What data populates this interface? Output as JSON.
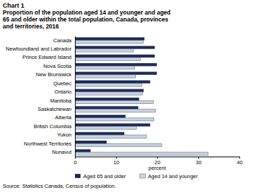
{
  "chart_data": {
    "type": "bar",
    "title": "Chart 1",
    "subtitle": "Proportion of the population aged 14 and younger and aged 65 and older within the total population, Canada, provinces and territories, 2016",
    "orientation": "horizontal",
    "grid": false,
    "legend": "bottom",
    "categories": [
      "Canada",
      "Newfoundland and Labrador",
      "Prince Edward Island",
      "Nova Scotia",
      "New Brunswick",
      "Quebec",
      "Ontario",
      "Manitoba",
      "Saskatchewan",
      "Alberta",
      "British Columbia",
      "Yukon",
      "Northwest Territories",
      "Nunavut"
    ],
    "series": [
      {
        "name": "Aged 65 and older",
        "color": "#1f2d5a",
        "values": [
          16.9,
          19.4,
          19.4,
          19.9,
          19.9,
          18.3,
          16.7,
          15.6,
          15.4,
          12.3,
          18.3,
          12.0,
          7.7,
          3.8
        ]
      },
      {
        "name": "Aged 14 and younger",
        "color": "#c9d4e0",
        "values": [
          16.6,
          14.2,
          15.9,
          14.5,
          14.8,
          16.3,
          16.4,
          19.1,
          19.6,
          19.2,
          14.9,
          17.4,
          21.1,
          32.4
        ]
      }
    ],
    "xlim": [
      0,
      40
    ],
    "xticks": [
      0,
      10,
      20,
      30,
      40
    ],
    "x_label": "percent",
    "source": "Source: Statistics Canada, Census of population."
  }
}
